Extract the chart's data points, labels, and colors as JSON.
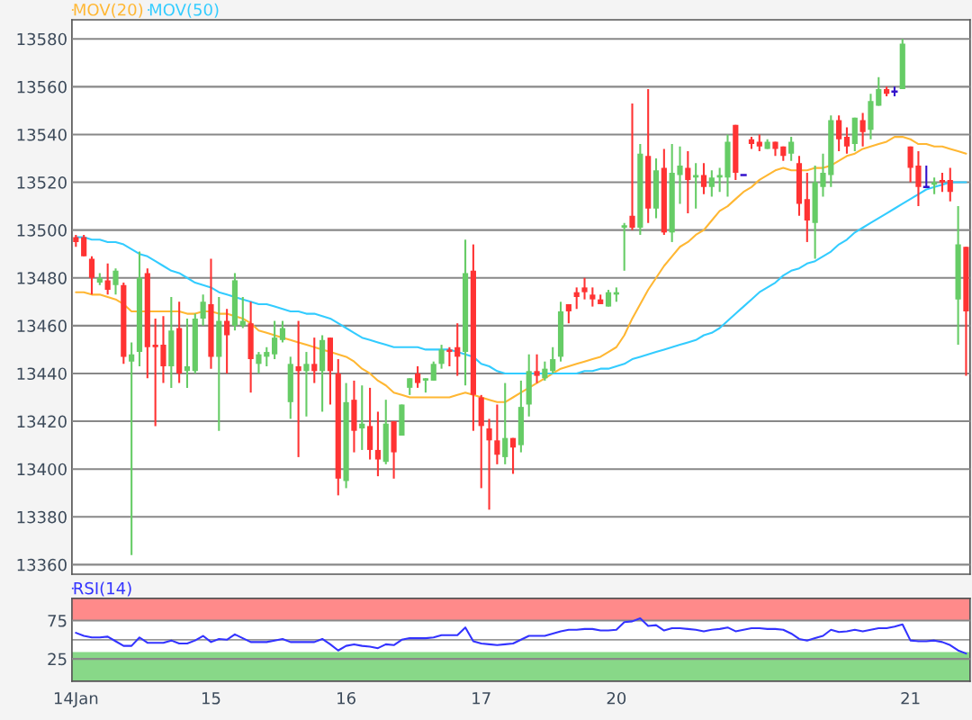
{
  "chart_data": [
    {
      "type": "candlestick",
      "legend": "top left",
      "grid": "y",
      "tick_labels": "y",
      "ylim": [
        13356,
        13588
      ],
      "yticks": [
        13360,
        13380,
        13400,
        13420,
        13440,
        13460,
        13480,
        13500,
        13520,
        13540,
        13560,
        13580
      ],
      "categories": [
        "14Jan",
        null,
        null,
        null,
        null,
        null,
        null,
        null,
        null,
        null,
        null,
        null,
        null,
        null,
        null,
        null,
        null,
        "15",
        null,
        null,
        null,
        null,
        null,
        null,
        null,
        null,
        null,
        null,
        null,
        null,
        null,
        null,
        null,
        null,
        "16",
        null,
        null,
        null,
        null,
        null,
        null,
        null,
        null,
        null,
        null,
        null,
        null,
        null,
        null,
        null,
        null,
        "17",
        null,
        null,
        null,
        null,
        null,
        null,
        null,
        null,
        null,
        null,
        null,
        null,
        null,
        null,
        null,
        null,
        "20",
        null,
        null,
        null,
        null,
        null,
        null,
        null,
        null,
        null,
        null,
        null,
        null,
        null,
        null,
        null,
        null,
        null,
        null,
        null,
        null,
        null,
        null,
        null,
        null,
        null,
        null,
        null,
        null,
        null,
        null,
        null,
        null,
        null,
        null,
        null,
        null,
        "21",
        null,
        null,
        null,
        null,
        null,
        null,
        null
      ],
      "ohlc": [
        [
          13497,
          13498,
          13493,
          13495
        ],
        [
          13497,
          13498,
          13489,
          13489
        ],
        [
          13488,
          13489,
          13473,
          13480
        ],
        [
          13478,
          13482,
          13477,
          13480
        ],
        [
          13479,
          13486,
          13473,
          13475
        ],
        [
          13477,
          13484,
          13473,
          13483
        ],
        [
          13477,
          13478,
          13444,
          13447
        ],
        [
          13445,
          13453,
          13364,
          13448
        ],
        [
          13449,
          13491,
          13443,
          13480
        ],
        [
          13482,
          13484,
          13438,
          13451
        ],
        [
          13452,
          13463,
          13418,
          13451
        ],
        [
          13452,
          13464,
          13436,
          13443
        ],
        [
          13443,
          13472,
          13434,
          13458
        ],
        [
          13459,
          13470,
          13436,
          13440
        ],
        [
          13441,
          13463,
          13434,
          13443
        ],
        [
          13441,
          13465,
          13440,
          13463
        ],
        [
          13463,
          13473,
          13460,
          13470
        ],
        [
          13469,
          13488,
          13442,
          13447
        ],
        [
          13447,
          13472,
          13416,
          13462
        ],
        [
          13462,
          13467,
          13440,
          13456
        ],
        [
          13460,
          13482,
          13458,
          13479
        ],
        [
          13460,
          13472,
          13459,
          13462
        ],
        [
          13461,
          13470,
          13432,
          13446
        ],
        [
          13444,
          13449,
          13440,
          13448
        ],
        [
          13447,
          13451,
          13443,
          13449
        ],
        [
          13448,
          13462,
          13446,
          13455
        ],
        [
          13454,
          13462,
          13453,
          13459
        ],
        [
          13428,
          13447,
          13421,
          13444
        ],
        [
          13443,
          13462,
          13405,
          13441
        ],
        [
          13441,
          13449,
          13422,
          13444
        ],
        [
          13444,
          13455,
          13436,
          13441
        ],
        [
          13441,
          13456,
          13424,
          13454
        ],
        [
          13455,
          13455,
          13427,
          13441
        ],
        [
          13440,
          13446,
          13389,
          13396
        ],
        [
          13395,
          13436,
          13392,
          13428
        ],
        [
          13429,
          13437,
          13407,
          13416
        ],
        [
          13417,
          13435,
          13408,
          13419
        ],
        [
          13418,
          13434,
          13404,
          13408
        ],
        [
          13408,
          13424,
          13397,
          13404
        ],
        [
          13403,
          13429,
          13402,
          13419
        ],
        [
          13420,
          13420,
          13396,
          13407
        ],
        [
          13414,
          13427,
          13414,
          13427
        ],
        [
          13434,
          13438,
          13431,
          13438
        ],
        [
          13440,
          13443,
          13434,
          13436
        ],
        [
          13437,
          13438,
          13432,
          13438
        ],
        [
          13437,
          13445,
          13437,
          13444
        ],
        [
          13444,
          13452,
          13442,
          13450
        ],
        [
          13450,
          13451,
          13443,
          13449
        ],
        [
          13451,
          13461,
          13439,
          13447
        ],
        [
          13449,
          13496,
          13435,
          13482
        ],
        [
          13483,
          13494,
          13416,
          13431
        ],
        [
          13430,
          13431,
          13392,
          13418
        ],
        [
          13417,
          13421,
          13383,
          13412
        ],
        [
          13412,
          13427,
          13402,
          13406
        ],
        [
          13405,
          13436,
          13402,
          13413
        ],
        [
          13413,
          13413,
          13398,
          13409
        ],
        [
          13410,
          13437,
          13407,
          13426
        ],
        [
          13427,
          13448,
          13422,
          13441
        ],
        [
          13441,
          13448,
          13436,
          13439
        ],
        [
          13438,
          13445,
          13437,
          13442
        ],
        [
          13441,
          13451,
          13440,
          13446
        ],
        [
          13447,
          13470,
          13445,
          13466
        ],
        [
          13469,
          13469,
          13461,
          13466
        ],
        [
          13474,
          13476,
          13467,
          13472
        ],
        [
          13476,
          13480,
          13471,
          13474
        ],
        [
          13473,
          13476,
          13468,
          13471
        ],
        [
          13471,
          13473,
          13469,
          13469
        ],
        [
          13468,
          13475,
          13468,
          13474
        ],
        [
          13473,
          13476,
          13470,
          13474
        ],
        [
          13501,
          13503,
          13483,
          13502
        ],
        [
          13506,
          13553,
          13500,
          13501
        ],
        [
          13501,
          13536,
          13498,
          13532
        ],
        [
          13531,
          13559,
          13503,
          13509
        ],
        [
          13509,
          13530,
          13505,
          13525
        ],
        [
          13526,
          13534,
          13498,
          13499
        ],
        [
          13499,
          13536,
          13495,
          13524
        ],
        [
          13523,
          13535,
          13511,
          13527
        ],
        [
          13526,
          13533,
          13507,
          13521
        ],
        [
          13522,
          13528,
          13509,
          13523
        ],
        [
          13523,
          13528,
          13515,
          13518
        ],
        [
          13518,
          13525,
          13514,
          13522
        ],
        [
          13522,
          13526,
          13516,
          13523
        ],
        [
          13522,
          13540,
          13514,
          13537
        ],
        [
          13544,
          13544,
          13521,
          13524
        ],
        [
          13523,
          13523,
          13523,
          13523
        ],
        [
          13538,
          13539,
          13534,
          13536
        ],
        [
          13537,
          13540,
          13533,
          13535
        ],
        [
          13534,
          13538,
          13534,
          13537
        ],
        [
          13537,
          13537,
          13531,
          13534
        ],
        [
          13535,
          13535,
          13529,
          13531
        ],
        [
          13532,
          13539,
          13529,
          13537
        ],
        [
          13528,
          13531,
          13506,
          13511
        ],
        [
          13513,
          13524,
          13495,
          13504
        ],
        [
          13503,
          13527,
          13488,
          13520
        ],
        [
          13518,
          13532,
          13514,
          13524
        ],
        [
          13523,
          13548,
          13518,
          13546
        ],
        [
          13546,
          13548,
          13533,
          13538
        ],
        [
          13539,
          13543,
          13532,
          13535
        ],
        [
          13536,
          13547,
          13533,
          13547
        ],
        [
          13546,
          13549,
          13535,
          13541
        ],
        [
          13542,
          13557,
          13538,
          13554
        ],
        [
          13552,
          13564,
          13552,
          13559
        ],
        [
          13559,
          13560,
          13556,
          13557
        ],
        [
          13558,
          13560,
          13556,
          13558
        ],
        [
          13559,
          13580,
          13559,
          13578
        ],
        [
          13535,
          13535,
          13520,
          13526
        ],
        [
          13527,
          13533,
          13510,
          13518
        ],
        [
          13518,
          13527,
          13518,
          13518
        ],
        [
          13519,
          13522,
          13515,
          13520
        ],
        [
          13521,
          13524,
          13516,
          13520
        ],
        [
          13521,
          13526,
          13512,
          13516
        ],
        [
          13471,
          13510,
          13452,
          13494
        ],
        [
          13493,
          13493,
          13439,
          13466
        ]
      ],
      "colors": [
        "#ff3333",
        "#ff3333",
        "#ff3333",
        "#66cc66",
        "#ff3333",
        "#66cc66",
        "#ff3333",
        "#66cc66",
        "#66cc66",
        "#ff3333",
        "#ff3333",
        "#ff3333",
        "#66cc66",
        "#ff3333",
        "#66cc66",
        "#66cc66",
        "#66cc66",
        "#ff3333",
        "#66cc66",
        "#ff3333",
        "#66cc66",
        "#66cc66",
        "#ff3333",
        "#66cc66",
        "#66cc66",
        "#66cc66",
        "#66cc66",
        "#66cc66",
        "#ff3333",
        "#66cc66",
        "#ff3333",
        "#66cc66",
        "#ff3333",
        "#ff3333",
        "#66cc66",
        "#ff3333",
        "#66cc66",
        "#ff3333",
        "#ff3333",
        "#66cc66",
        "#ff3333",
        "#66cc66",
        "#66cc66",
        "#ff3333",
        "#66cc66",
        "#66cc66",
        "#66cc66",
        "#ff3333",
        "#ff3333",
        "#66cc66",
        "#ff3333",
        "#ff3333",
        "#ff3333",
        "#ff3333",
        "#66cc66",
        "#ff3333",
        "#66cc66",
        "#66cc66",
        "#ff3333",
        "#66cc66",
        "#66cc66",
        "#66cc66",
        "#ff3333",
        "#ff3333",
        "#ff3333",
        "#ff3333",
        "#ff3333",
        "#66cc66",
        "#66cc66",
        "#66cc66",
        "#ff3333",
        "#66cc66",
        "#ff3333",
        "#66cc66",
        "#ff3333",
        "#66cc66",
        "#66cc66",
        "#ff3333",
        "#66cc66",
        "#ff3333",
        "#66cc66",
        "#66cc66",
        "#66cc66",
        "#ff3333",
        "#3311cc",
        "#ff3333",
        "#ff3333",
        "#66cc66",
        "#ff3333",
        "#ff3333",
        "#66cc66",
        "#ff3333",
        "#ff3333",
        "#66cc66",
        "#66cc66",
        "#66cc66",
        "#ff3333",
        "#ff3333",
        "#66cc66",
        "#ff3333",
        "#66cc66",
        "#66cc66",
        "#ff3333",
        "#3311cc",
        "#66cc66",
        "#ff3333",
        "#ff3333",
        "#3311cc",
        "#66cc66",
        "#ff3333",
        "#ff3333",
        "#66cc66",
        "#ff3333"
      ],
      "series": [
        {
          "type": "line",
          "name": "MOV(20)",
          "color": "#ffb733",
          "values": [
            13474,
            13474,
            13473,
            13473,
            13472,
            13471,
            13469,
            13466,
            13466,
            13466,
            13466,
            13466,
            13466,
            13466,
            13465,
            13465,
            13466,
            13466,
            13465,
            13465,
            13464,
            13463,
            13461,
            13458,
            13457,
            13456,
            13455,
            13454,
            13453,
            13452,
            13451,
            13450,
            13449,
            13448,
            13447,
            13445,
            13442,
            13440,
            13437,
            13435,
            13432,
            13431,
            13430,
            13430,
            13430,
            13430,
            13430,
            13430,
            13431,
            13432,
            13431,
            13430,
            13429,
            13428,
            13428,
            13430,
            13432,
            13434,
            13436,
            13438,
            13440,
            13442,
            13443,
            13444,
            13445,
            13446,
            13447,
            13449,
            13451,
            13456,
            13463,
            13469,
            13475,
            13480,
            13485,
            13489,
            13493,
            13495,
            13498,
            13500,
            13504,
            13508,
            13510,
            13513,
            13516,
            13518,
            13521,
            13523,
            13525,
            13526,
            13525,
            13525,
            13525,
            13526,
            13526,
            13527,
            13529,
            13531,
            13532,
            13534,
            13535,
            13536,
            13537,
            13539,
            13539,
            13538,
            13536,
            13536,
            13535,
            13535,
            13534,
            13533,
            13532
          ]
        },
        {
          "type": "line",
          "name": "MOV(50)",
          "color": "#33ccff",
          "values": [
            13497,
            13497,
            13496,
            13496,
            13495,
            13495,
            13494,
            13492,
            13490,
            13489,
            13487,
            13485,
            13483,
            13482,
            13480,
            13478,
            13477,
            13476,
            13474,
            13473,
            13472,
            13471,
            13470,
            13469,
            13469,
            13468,
            13467,
            13466,
            13466,
            13465,
            13465,
            13464,
            13463,
            13461,
            13459,
            13457,
            13455,
            13454,
            13453,
            13452,
            13451,
            13451,
            13451,
            13451,
            13450,
            13450,
            13450,
            13450,
            13449,
            13448,
            13447,
            13444,
            13443,
            13441,
            13440,
            13440,
            13440,
            13440,
            13440,
            13440,
            13440,
            13440,
            13440,
            13440,
            13441,
            13441,
            13442,
            13442,
            13443,
            13444,
            13446,
            13447,
            13448,
            13449,
            13450,
            13451,
            13452,
            13453,
            13454,
            13456,
            13457,
            13459,
            13462,
            13465,
            13468,
            13471,
            13474,
            13476,
            13478,
            13481,
            13483,
            13484,
            13486,
            13487,
            13489,
            13491,
            13494,
            13496,
            13499,
            13501,
            13503,
            13505,
            13507,
            13509,
            13511,
            13513,
            13515,
            13517,
            13518,
            13519,
            13520,
            13520,
            13520
          ]
        }
      ]
    },
    {
      "type": "line",
      "legend": "top left",
      "grid": "y",
      "ylim": [
        -4,
        104
      ],
      "yticks": [
        25,
        75
      ],
      "categories": [
        "14Jan",
        null,
        null,
        null,
        null,
        null,
        null,
        null,
        null,
        null,
        null,
        null,
        null,
        null,
        null,
        null,
        null,
        "15",
        null,
        null,
        null,
        null,
        null,
        null,
        null,
        null,
        null,
        null,
        null,
        null,
        null,
        null,
        null,
        null,
        "16",
        null,
        null,
        null,
        null,
        null,
        null,
        null,
        null,
        null,
        null,
        null,
        null,
        null,
        null,
        null,
        null,
        "17",
        null,
        null,
        null,
        null,
        null,
        null,
        null,
        null,
        null,
        null,
        null,
        null,
        null,
        null,
        null,
        null,
        "20",
        null,
        null,
        null,
        null,
        null,
        null,
        null,
        null,
        null,
        null,
        null,
        null,
        null,
        null,
        null,
        null,
        null,
        null,
        null,
        null,
        null,
        null,
        null,
        null,
        null,
        null,
        null,
        null,
        null,
        null,
        null,
        null,
        null,
        null,
        null,
        null,
        "21",
        null,
        null,
        null,
        null,
        null,
        null,
        null
      ],
      "bands": [
        {
          "axis": "y",
          "from": 75,
          "to": 104,
          "color": "#ff8a8a"
        },
        {
          "axis": "y",
          "from": -4,
          "to": 34,
          "color": "#88d888"
        }
      ],
      "ref_lines": [
        {
          "axis": "y",
          "value": 50,
          "color": "#999999"
        }
      ],
      "series": [
        {
          "name": "RSI(14)",
          "color": "#3333ff",
          "values": [
            59,
            55,
            53,
            53,
            54,
            48,
            42,
            42,
            53,
            46,
            46,
            46,
            49,
            45,
            45,
            49,
            55,
            47,
            51,
            50,
            57,
            52,
            47,
            47,
            47,
            49,
            51,
            47,
            47,
            47,
            47,
            51,
            44,
            36,
            42,
            44,
            42,
            41,
            39,
            44,
            43,
            50,
            52,
            52,
            52,
            53,
            56,
            56,
            56,
            66,
            48,
            45,
            44,
            43,
            44,
            45,
            50,
            55,
            55,
            55,
            58,
            61,
            63,
            63,
            64,
            64,
            62,
            62,
            63,
            73,
            74,
            78,
            68,
            69,
            62,
            65,
            65,
            64,
            63,
            61,
            63,
            64,
            66,
            61,
            63,
            65,
            65,
            64,
            64,
            63,
            58,
            51,
            49,
            52,
            55,
            63,
            60,
            61,
            63,
            61,
            63,
            65,
            65,
            67,
            70,
            49,
            48,
            48,
            49,
            47,
            43,
            36,
            32
          ]
        }
      ]
    }
  ]
}
